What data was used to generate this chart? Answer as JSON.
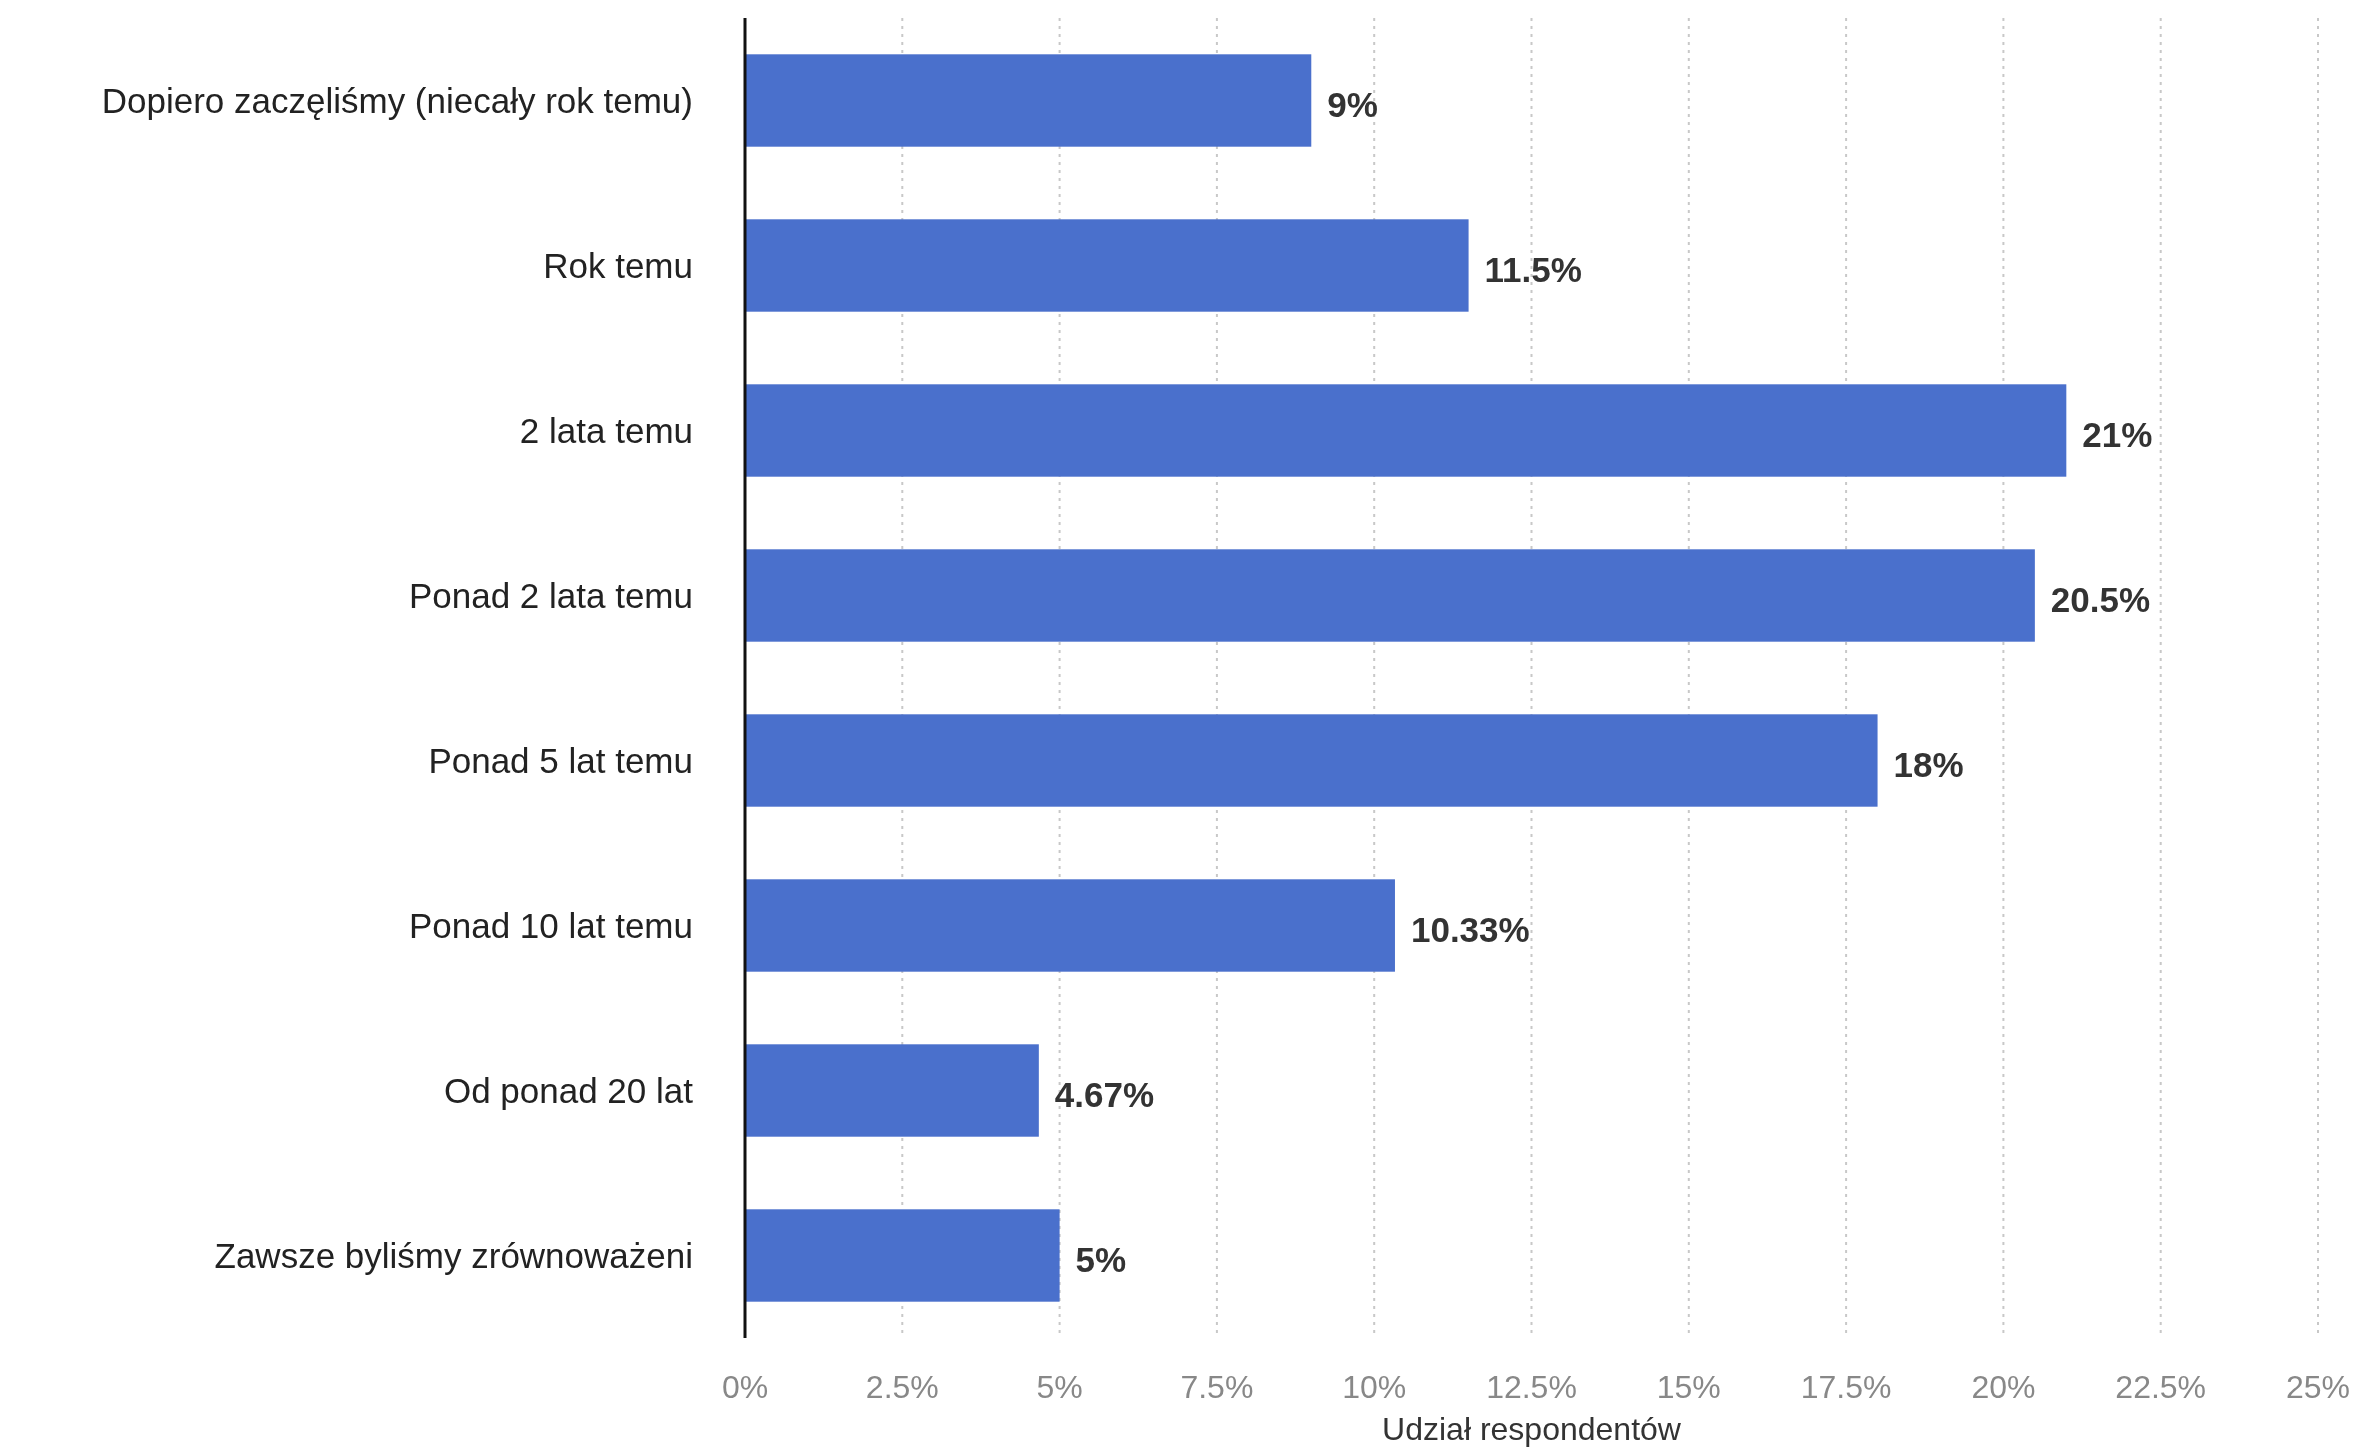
{
  "chart_data": {
    "type": "bar",
    "orientation": "horizontal",
    "xlabel": "Udział respondentów",
    "categories": [
      "Dopiero zaczęliśmy (niecały rok temu)",
      "Rok temu",
      "2 lata temu",
      "Ponad 2 lata temu",
      "Ponad 5 lat temu",
      "Ponad 10 lat temu",
      "Od ponad 20 lat",
      "Zawsze byliśmy zrównoważeni"
    ],
    "values": [
      9,
      11.5,
      21,
      20.5,
      18,
      10.33,
      4.67,
      5
    ],
    "value_labels": [
      "9%",
      "11.5%",
      "21%",
      "20.5%",
      "18%",
      "10.33%",
      "4.67%",
      "5%"
    ],
    "color": "#4a70cc",
    "xlim": [
      0,
      25
    ],
    "xticks": [
      {
        "value": 0,
        "label": "0%"
      },
      {
        "value": 2.5,
        "label": "2.5%"
      },
      {
        "value": 5,
        "label": "5%"
      },
      {
        "value": 7.5,
        "label": "7.5%"
      },
      {
        "value": 10,
        "label": "10%"
      },
      {
        "value": 12.5,
        "label": "12.5%"
      },
      {
        "value": 15,
        "label": "15%"
      },
      {
        "value": 17.5,
        "label": "17.5%"
      },
      {
        "value": 20,
        "label": "20%"
      },
      {
        "value": 22.5,
        "label": "22.5%"
      },
      {
        "value": 25,
        "label": "25%"
      }
    ],
    "grid": "x"
  }
}
